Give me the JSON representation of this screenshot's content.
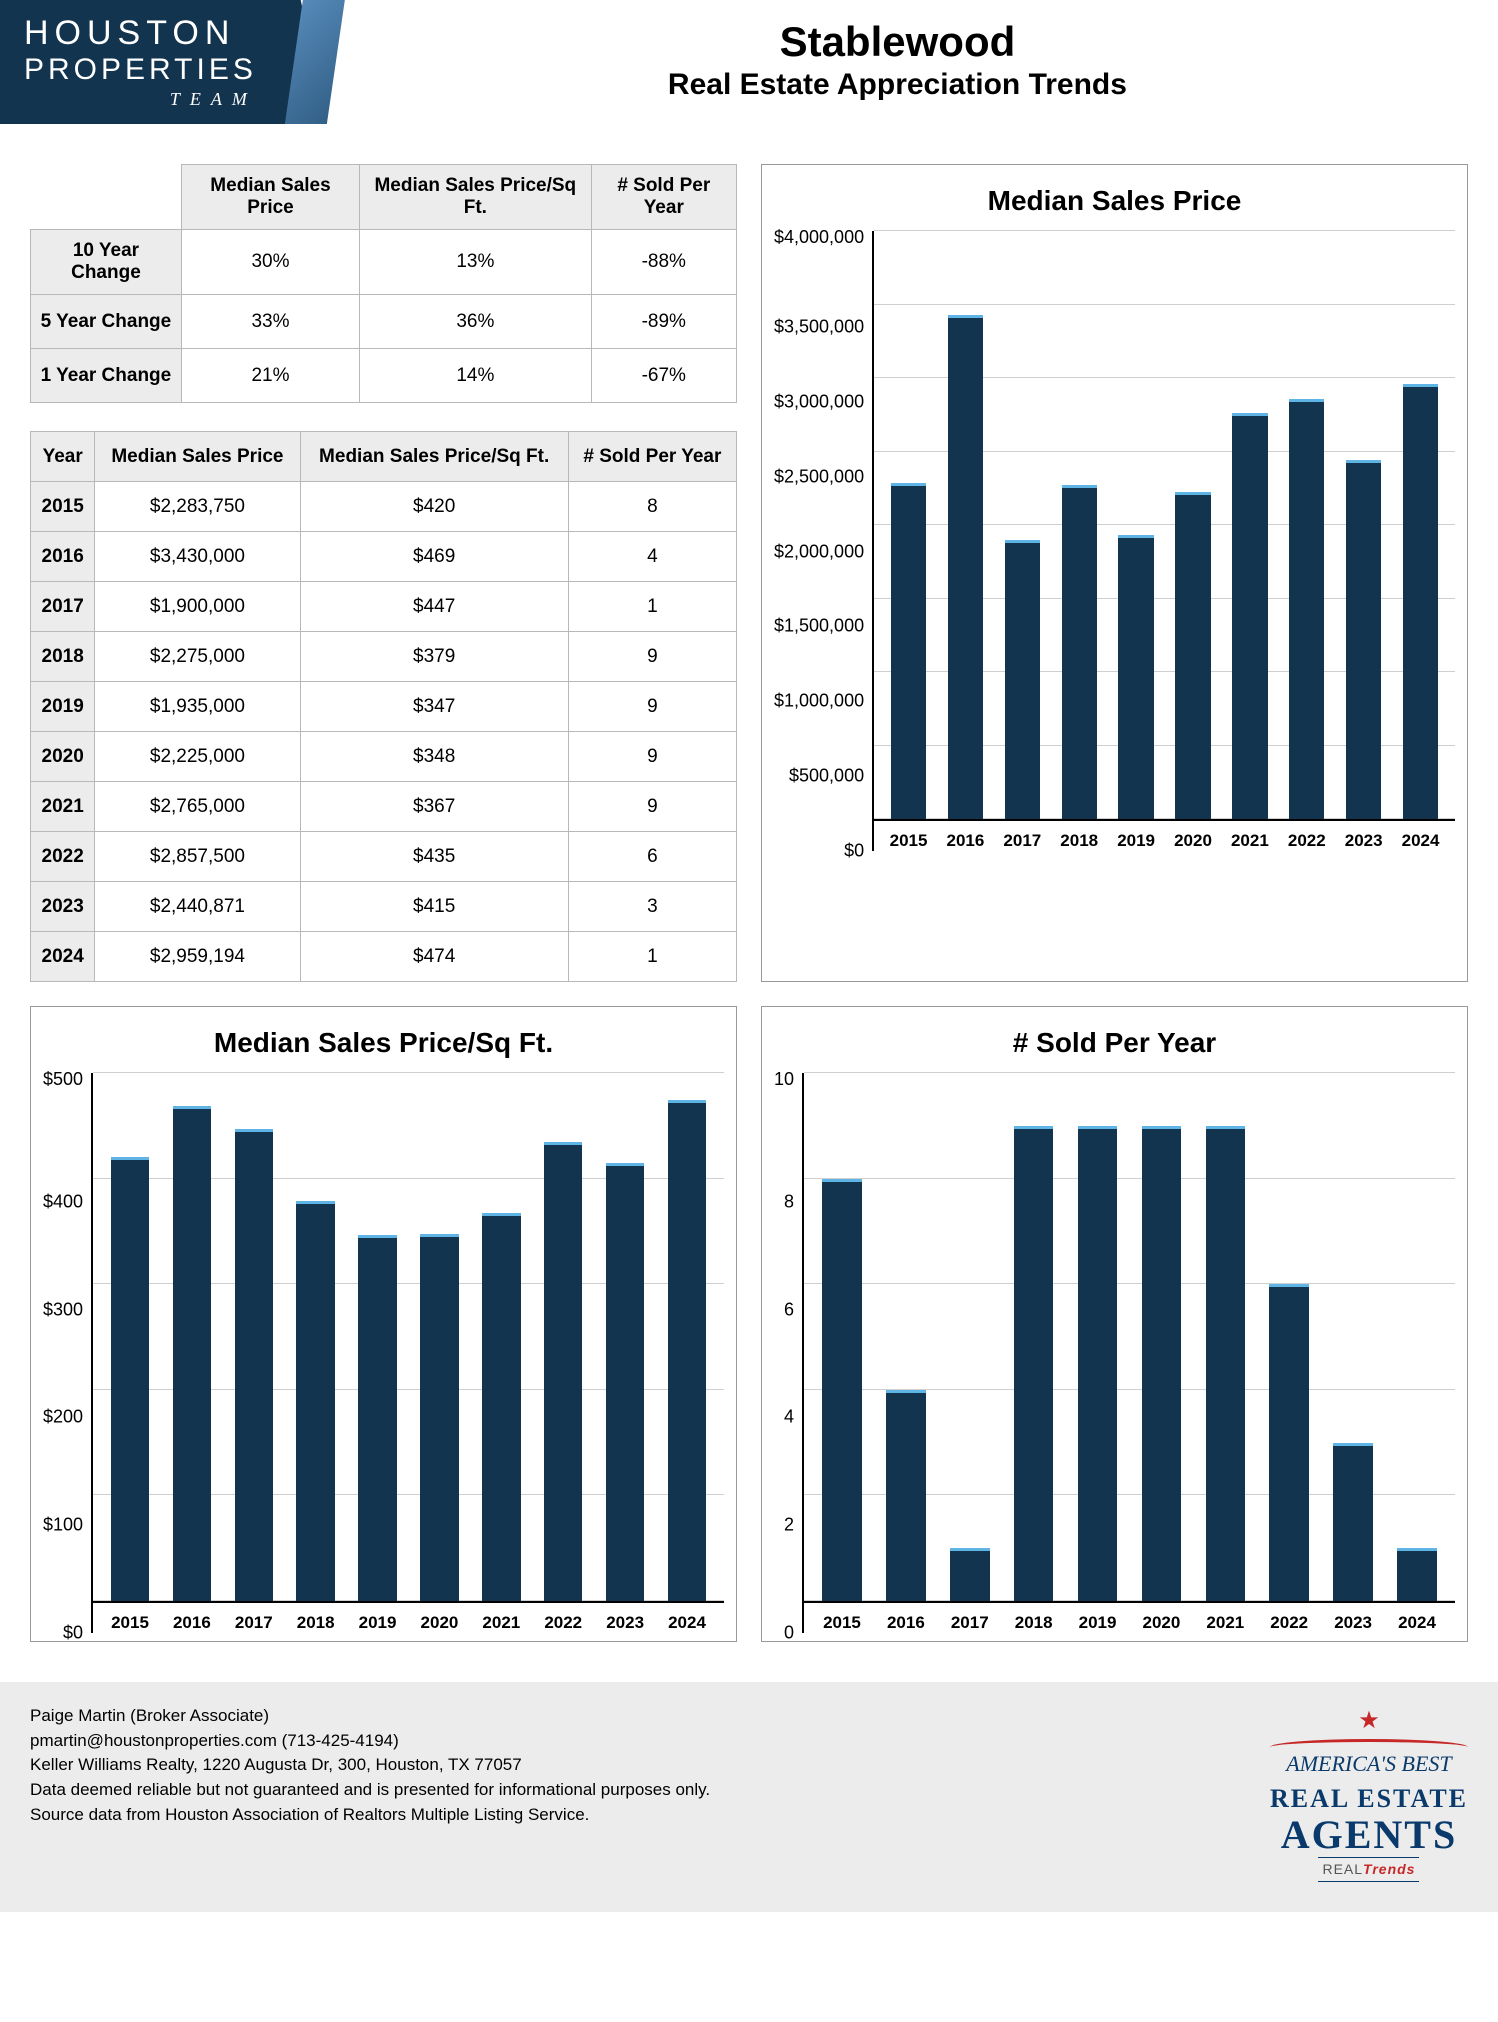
{
  "logo": {
    "line1": "HOUSTON",
    "line2": "PROPERTIES",
    "team": "TEAM"
  },
  "title": {
    "main": "Stablewood",
    "sub": "Real Estate Appreciation Trends"
  },
  "colors": {
    "bar_fill": "#13344f",
    "bar_top": "#5fb4e6",
    "grid": "#cfcfcf",
    "table_head": "#ececec",
    "border": "#b8b8b8",
    "footer_bg": "#ececec"
  },
  "change_table": {
    "headers": [
      "",
      "Median Sales Price",
      "Median Sales Price/Sq Ft.",
      "# Sold Per Year"
    ],
    "rows": [
      {
        "label": "10 Year Change",
        "cells": [
          "30%",
          "13%",
          "-88%"
        ]
      },
      {
        "label": "5 Year Change",
        "cells": [
          "33%",
          "36%",
          "-89%"
        ]
      },
      {
        "label": "1 Year Change",
        "cells": [
          "21%",
          "14%",
          "-67%"
        ]
      }
    ]
  },
  "year_table": {
    "headers": [
      "Year",
      "Median Sales Price",
      "Median Sales Price/Sq Ft.",
      "# Sold Per Year"
    ],
    "rows": [
      {
        "label": "2015",
        "cells": [
          "$2,283,750",
          "$420",
          "8"
        ]
      },
      {
        "label": "2016",
        "cells": [
          "$3,430,000",
          "$469",
          "4"
        ]
      },
      {
        "label": "2017",
        "cells": [
          "$1,900,000",
          "$447",
          "1"
        ]
      },
      {
        "label": "2018",
        "cells": [
          "$2,275,000",
          "$379",
          "9"
        ]
      },
      {
        "label": "2019",
        "cells": [
          "$1,935,000",
          "$347",
          "9"
        ]
      },
      {
        "label": "2020",
        "cells": [
          "$2,225,000",
          "$348",
          "9"
        ]
      },
      {
        "label": "2021",
        "cells": [
          "$2,765,000",
          "$367",
          "9"
        ]
      },
      {
        "label": "2022",
        "cells": [
          "$2,857,500",
          "$435",
          "6"
        ]
      },
      {
        "label": "2023",
        "cells": [
          "$2,440,871",
          "$415",
          "3"
        ]
      },
      {
        "label": "2024",
        "cells": [
          "$2,959,194",
          "$474",
          "1"
        ]
      }
    ]
  },
  "chart_price": {
    "type": "bar",
    "title": "Median Sales Price",
    "categories": [
      "2015",
      "2016",
      "2017",
      "2018",
      "2019",
      "2020",
      "2021",
      "2022",
      "2023",
      "2024"
    ],
    "values": [
      2283750,
      3430000,
      1900000,
      2275000,
      1935000,
      2225000,
      2765000,
      2857500,
      2440871,
      2959194
    ],
    "ylim": [
      0,
      4000000
    ],
    "ytick_step": 500000,
    "ytick_labels": [
      "$4,000,000",
      "$3,500,000",
      "$3,000,000",
      "$2,500,000",
      "$2,000,000",
      "$1,500,000",
      "$1,000,000",
      "$500,000",
      "$0"
    ],
    "bar_color": "#13344f",
    "bar_top_color": "#5fb4e6",
    "grid_color": "#cfcfcf",
    "background_color": "#ffffff",
    "title_fontsize": 28,
    "label_fontsize": 17,
    "bar_width": 0.62
  },
  "chart_sqft": {
    "type": "bar",
    "title": "Median Sales Price/Sq Ft.",
    "categories": [
      "2015",
      "2016",
      "2017",
      "2018",
      "2019",
      "2020",
      "2021",
      "2022",
      "2023",
      "2024"
    ],
    "values": [
      420,
      469,
      447,
      379,
      347,
      348,
      367,
      435,
      415,
      474
    ],
    "ylim": [
      0,
      500
    ],
    "ytick_step": 100,
    "ytick_labels": [
      "$500",
      "$400",
      "$300",
      "$200",
      "$100",
      "$0"
    ],
    "bar_color": "#13344f",
    "bar_top_color": "#5fb4e6",
    "grid_color": "#cfcfcf",
    "background_color": "#ffffff",
    "title_fontsize": 28,
    "label_fontsize": 17,
    "bar_width": 0.62
  },
  "chart_sold": {
    "type": "bar",
    "title": "# Sold Per Year",
    "categories": [
      "2015",
      "2016",
      "2017",
      "2018",
      "2019",
      "2020",
      "2021",
      "2022",
      "2023",
      "2024"
    ],
    "values": [
      8,
      4,
      1,
      9,
      9,
      9,
      9,
      6,
      3,
      1
    ],
    "ylim": [
      0,
      10
    ],
    "ytick_step": 2,
    "ytick_labels": [
      "10",
      "8",
      "6",
      "4",
      "2",
      "0"
    ],
    "bar_color": "#13344f",
    "bar_top_color": "#5fb4e6",
    "grid_color": "#cfcfcf",
    "background_color": "#ffffff",
    "title_fontsize": 28,
    "label_fontsize": 17,
    "bar_width": 0.62
  },
  "footer": {
    "lines": [
      "Paige Martin (Broker Associate)",
      "pmartin@houstonproperties.com (713-425-4194)",
      "Keller Williams Realty, 1220 Augusta Dr, 300, Houston, TX 77057",
      "Data deemed reliable but not guaranteed and is presented for informational purposes only.",
      "Source data from Houston Association of Realtors Multiple Listing Service."
    ],
    "badge": {
      "top": "AMERICA'S BEST",
      "mid": "REAL ESTATE",
      "big": "AGENTS",
      "small_a": "REAL",
      "small_b": "Trends"
    }
  }
}
